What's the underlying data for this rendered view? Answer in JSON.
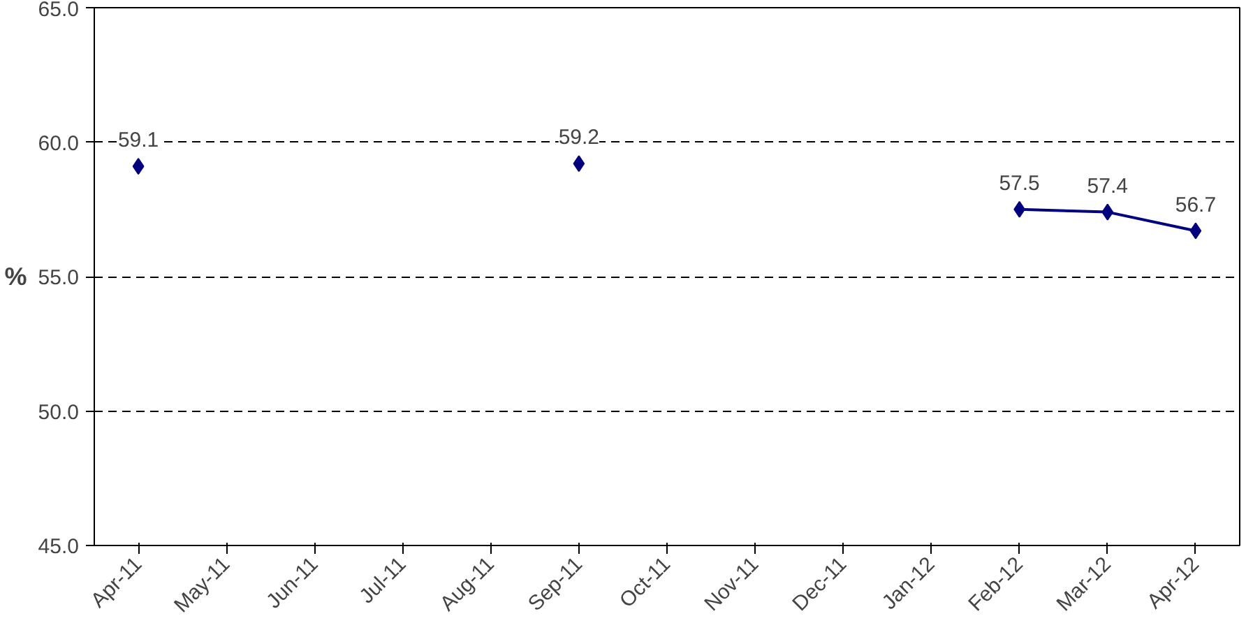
{
  "chart_data": {
    "type": "line",
    "ylabel": "%",
    "categories": [
      "Apr-11",
      "May-11",
      "Jun-11",
      "Jul-11",
      "Aug-11",
      "Sep-11",
      "Oct-11",
      "Nov-11",
      "Dec-11",
      "Jan-12",
      "Feb-12",
      "Mar-12",
      "Apr-12"
    ],
    "series": [
      {
        "color": "#000080",
        "values": [
          59.1,
          null,
          null,
          null,
          null,
          59.2,
          null,
          null,
          null,
          null,
          57.5,
          57.4,
          56.7
        ]
      }
    ],
    "ylim": [
      45,
      65
    ],
    "yticks": [
      {
        "value": 45,
        "label": "45.0"
      },
      {
        "value": 50,
        "label": "50.0"
      },
      {
        "value": 55,
        "label": "55.0"
      },
      {
        "value": 60,
        "label": "60.0"
      },
      {
        "value": 65,
        "label": "65.0"
      }
    ],
    "grid": "y",
    "marker": "diamond",
    "line_style": "solid",
    "data_labels": true
  }
}
